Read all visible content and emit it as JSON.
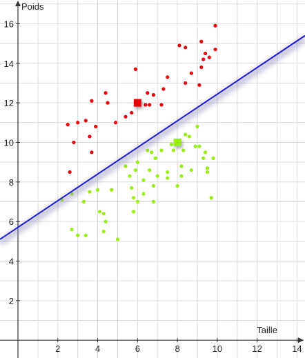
{
  "chart_data": {
    "type": "scatter",
    "xlabel": "Taille",
    "ylabel": "Poids",
    "xlim": [
      -0.9,
      14.4
    ],
    "ylim": [
      -0.9,
      17.2
    ],
    "x_ticks": [
      2,
      4,
      6,
      8,
      10,
      12,
      14
    ],
    "y_ticks": [
      2,
      4,
      6,
      8,
      10,
      12,
      14,
      16
    ],
    "grid": true,
    "colors": {
      "red": "#e8000b",
      "green": "#99ee11",
      "line": "#1a1ae6",
      "grid": "#d9d9d9",
      "axis": "#333333"
    },
    "series": [
      {
        "color": "red",
        "points": [
          [
            2.5,
            10.9
          ],
          [
            2.8,
            10.0
          ],
          [
            2.6,
            8.5
          ],
          [
            3.0,
            11.0
          ],
          [
            3.4,
            11.1
          ],
          [
            3.6,
            10.3
          ],
          [
            3.7,
            12.1
          ],
          [
            3.9,
            10.8
          ],
          [
            3.7,
            9.5
          ],
          [
            4.4,
            12.5
          ],
          [
            4.5,
            12.0
          ],
          [
            4.9,
            11.0
          ],
          [
            5.4,
            11.3
          ],
          [
            5.7,
            11.5
          ],
          [
            5.9,
            13.7
          ],
          [
            6.4,
            11.9
          ],
          [
            6.5,
            12.5
          ],
          [
            6.6,
            11.9
          ],
          [
            6.8,
            12.4
          ],
          [
            7.2,
            11.9
          ],
          [
            7.3,
            12.7
          ],
          [
            7.5,
            13.3
          ],
          [
            8.1,
            14.9
          ],
          [
            8.4,
            14.8
          ],
          [
            8.4,
            13.0
          ],
          [
            8.7,
            13.5
          ],
          [
            9.1,
            12.9
          ],
          [
            9.2,
            15.1
          ],
          [
            9.2,
            13.8
          ],
          [
            9.3,
            14.2
          ],
          [
            9.4,
            14.5
          ],
          [
            9.6,
            14.3
          ],
          [
            9.9,
            15.9
          ],
          [
            9.9,
            14.7
          ]
        ]
      },
      {
        "color": "green",
        "points": [
          [
            2.2,
            7.1
          ],
          [
            2.7,
            7.4
          ],
          [
            2.7,
            5.6
          ],
          [
            3.0,
            5.3
          ],
          [
            3.4,
            5.3
          ],
          [
            3.3,
            7.0
          ],
          [
            3.6,
            7.5
          ],
          [
            4.0,
            7.6
          ],
          [
            4.1,
            6.5
          ],
          [
            4.3,
            6.4
          ],
          [
            4.4,
            6.0
          ],
          [
            4.3,
            5.5
          ],
          [
            4.7,
            7.6
          ],
          [
            5.0,
            5.1
          ],
          [
            5.4,
            8.8
          ],
          [
            5.6,
            8.3
          ],
          [
            5.7,
            7.7
          ],
          [
            5.8,
            7.2
          ],
          [
            5.8,
            6.5
          ],
          [
            5.9,
            8.6
          ],
          [
            6.0,
            9.0
          ],
          [
            6.0,
            7.0
          ],
          [
            6.3,
            8.1
          ],
          [
            6.3,
            7.4
          ],
          [
            6.5,
            9.6
          ],
          [
            6.6,
            8.6
          ],
          [
            6.7,
            9.5
          ],
          [
            6.8,
            7.8
          ],
          [
            6.8,
            7.0
          ],
          [
            6.9,
            9.2
          ],
          [
            7.0,
            8.3
          ],
          [
            7.2,
            9.6
          ],
          [
            7.5,
            8.2
          ],
          [
            7.5,
            8.5
          ],
          [
            7.7,
            9.9
          ],
          [
            7.8,
            9.6
          ],
          [
            8.0,
            7.8
          ],
          [
            8.2,
            8.8
          ],
          [
            8.2,
            8.3
          ],
          [
            8.3,
            9.6
          ],
          [
            8.4,
            10.4
          ],
          [
            8.6,
            10.3
          ],
          [
            8.7,
            8.6
          ],
          [
            8.9,
            9.8
          ],
          [
            9.0,
            10.8
          ],
          [
            9.1,
            9.8
          ],
          [
            9.3,
            9.2
          ],
          [
            9.4,
            9.5
          ],
          [
            9.5,
            8.7
          ],
          [
            9.5,
            8.5
          ],
          [
            9.7,
            7.2
          ],
          [
            9.8,
            9.2
          ]
        ]
      }
    ],
    "centroids": [
      {
        "color": "red",
        "x": 6.0,
        "y": 12.0
      },
      {
        "color": "green",
        "x": 8.0,
        "y": 10.0
      }
    ],
    "line": {
      "x1": -0.9,
      "y1": 5.1,
      "x2": 14.4,
      "y2": 15.4
    }
  }
}
